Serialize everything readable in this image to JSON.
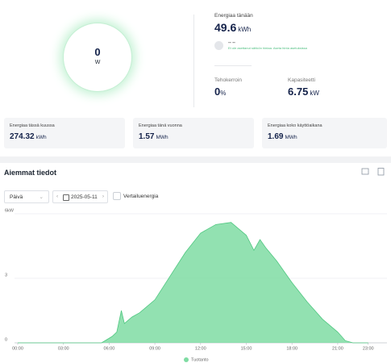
{
  "gauge": {
    "value": 0,
    "unit": "W"
  },
  "today": {
    "label": "Energiaa tänään",
    "value": 49.6,
    "unit": "kWh"
  },
  "price": {
    "value": "-- --",
    "note": "Et ole asettanut sähkön hintaa. Aseta hinta asetuksissa"
  },
  "power_factor": {
    "label": "Tehokerroin",
    "value": 0,
    "unit": "%"
  },
  "capacity": {
    "label": "Kapasiteetti",
    "value": 6.75,
    "unit": "kW"
  },
  "cards": [
    {
      "label": "Energiaa tässä kuussa",
      "value": 274.32,
      "unit": "kWh"
    },
    {
      "label": "Energiaa tänä vuonna",
      "value": 1.57,
      "unit": "MWh"
    },
    {
      "label": "Energiaa koko käyttöaikana",
      "value": 1.69,
      "unit": "MWh"
    }
  ],
  "history": {
    "title": "Aiemmat tiedot",
    "period": "Päivä",
    "date": "2025-05-11",
    "compare": "Vertailuenergia"
  },
  "chart_data": {
    "type": "area",
    "x": [
      0,
      5.5,
      6.2,
      6.5,
      6.8,
      7.0,
      7.5,
      8,
      9,
      10,
      11,
      12,
      13,
      14,
      14.5,
      15,
      15.5,
      15.9,
      16.3,
      17,
      18,
      19,
      20,
      21,
      21.5,
      22,
      23
    ],
    "series": [
      {
        "name": "Tuotanto",
        "color": "#7fdca3",
        "values": [
          0,
          0,
          0.3,
          0.5,
          1.5,
          0.9,
          1.2,
          1.4,
          2.0,
          3.1,
          4.2,
          5.1,
          5.5,
          5.6,
          5.3,
          5.0,
          4.3,
          4.8,
          4.4,
          3.8,
          2.8,
          1.9,
          1.1,
          0.5,
          0.1,
          0,
          0
        ]
      }
    ],
    "xlim": [
      0,
      23
    ],
    "xticks": [
      {
        "value": 0,
        "label": "00:00"
      },
      {
        "value": 3,
        "label": "03:00"
      },
      {
        "value": 6,
        "label": "06:00"
      },
      {
        "value": 9,
        "label": "09:00"
      },
      {
        "value": 12,
        "label": "12:00"
      },
      {
        "value": 15,
        "label": "15:00"
      },
      {
        "value": 18,
        "label": "18:00"
      },
      {
        "value": 21,
        "label": "21:00"
      },
      {
        "value": 23,
        "label": "23:00"
      }
    ],
    "ylim": [
      0,
      6
    ],
    "yticks": [
      0,
      3,
      {
        "value": 6,
        "label": "6kW"
      }
    ],
    "grid": true
  }
}
